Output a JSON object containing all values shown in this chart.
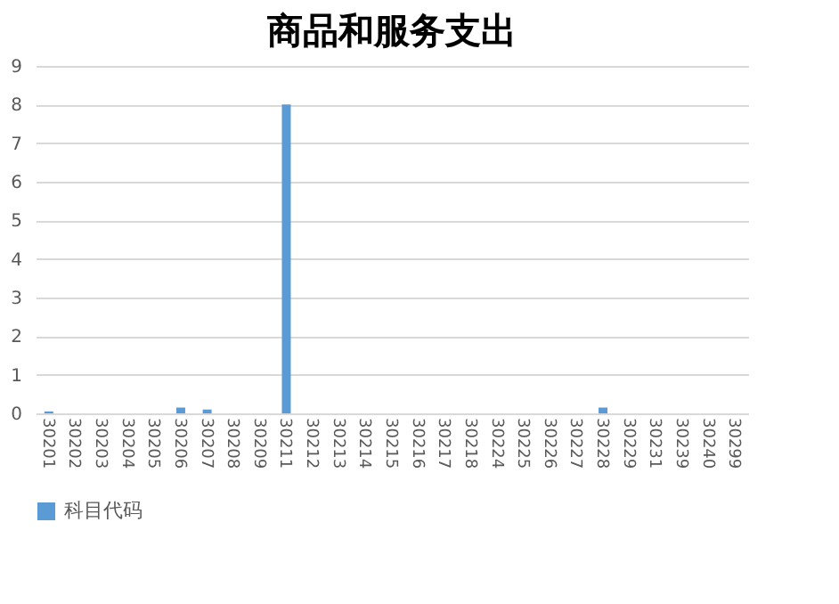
{
  "chart_data": {
    "type": "bar",
    "title": "商品和服务支出",
    "categories": [
      "30201",
      "30202",
      "30203",
      "30204",
      "30205",
      "30206",
      "30207",
      "30208",
      "30209",
      "30211",
      "30212",
      "30213",
      "30214",
      "30215",
      "30216",
      "30217",
      "30218",
      "30224",
      "30225",
      "30226",
      "30227",
      "30228",
      "30229",
      "30231",
      "30239",
      "30240",
      "30299"
    ],
    "series": [
      {
        "name": "科目代码",
        "color": "#5b9bd5",
        "values": [
          0.05,
          0,
          0,
          0,
          0,
          0.15,
          0.1,
          0,
          0,
          8,
          0,
          0,
          0,
          0,
          0,
          0,
          0,
          0,
          0,
          0,
          0,
          0.15,
          0,
          0,
          0,
          0,
          0
        ]
      }
    ],
    "ylim": [
      0,
      9
    ],
    "yticks": [
      0,
      1,
      2,
      3,
      4,
      5,
      6,
      7,
      8,
      9
    ],
    "grid": "y",
    "legend": "bottom"
  }
}
